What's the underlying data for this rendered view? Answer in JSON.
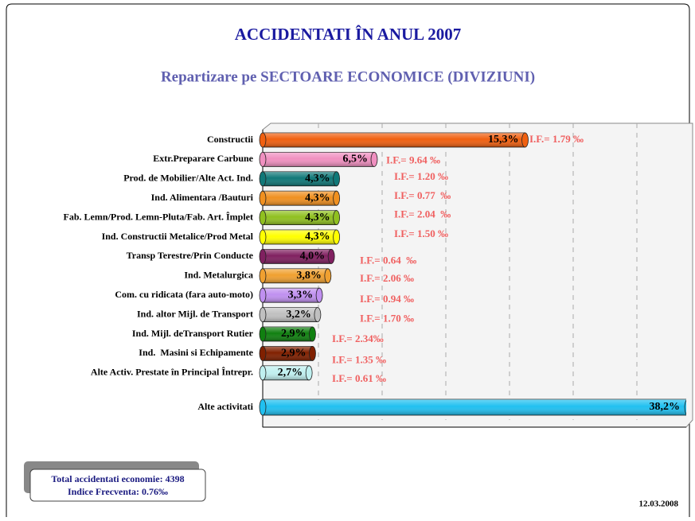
{
  "chart_data": {
    "type": "bar",
    "orientation": "horizontal",
    "title": "ACCIDENTATI ÎN ANUL 2007",
    "subtitle": "Repartizare pe SECTOARE ECONOMICE (DIVIZIUNI)",
    "categories": [
      "Constructii",
      "Extr.Preparare Carbune",
      "Prod. de Mobilier/Alte Act. Ind.",
      "Ind. Alimentara /Bauturi",
      "Fab. Lemn/Prod. Lemn-Pluta/Fab. Art. Împlet",
      "Ind. Constructii Metalice/Prod Metal",
      "Transp Terestre/Prin Conducte",
      "Ind. Metalurgica",
      "Com. cu ridicata (fara auto-moto)",
      "Ind. altor Mijl. de Transport",
      "Ind. Mijl. deTransport Rutier",
      "Ind.  Masini si Echipamente",
      "Alte Activ. Prestate în Principal Întrepr.",
      "Alte activitati"
    ],
    "values": [
      15.3,
      6.5,
      4.3,
      4.3,
      4.3,
      4.3,
      4.0,
      3.8,
      3.3,
      3.2,
      2.9,
      2.9,
      2.7,
      38.2
    ],
    "value_labels": [
      "15,3%",
      "6,5%",
      "4,3%",
      "4,3%",
      "4,3%",
      "4,3%",
      "4,0%",
      "3,8%",
      "3,3%",
      "3,2%",
      "2,9%",
      "2,9%",
      "2,7%",
      "38,2%"
    ],
    "colors": [
      "#f06010",
      "#f090c0",
      "#107878",
      "#f09020",
      "#90c020",
      "#ffff00",
      "#802060",
      "#f0a030",
      "#c090f0",
      "#c0c0c0",
      "#108010",
      "#802000",
      "#c0f0f0",
      "#20c0f0"
    ],
    "annotations": [
      "I.F.= 1.79 ‰",
      "I.F.= 9.64 ‰",
      "I.F.= 1.20 ‰",
      "I.F.= 0.77  ‰",
      "I.F.= 2.04  ‰",
      "I.F.= 1.50 ‰",
      "I.F.= 0.64  ‰",
      "I.F.= 2.06 ‰",
      "I.F.= 0.94 ‰",
      "I.F.= 1.70 ‰",
      "I.F.= 2.34‰",
      "I.F.= 1.35 ‰",
      "I.F.= 0.61 ‰"
    ],
    "xlim": [
      0,
      24.7
    ],
    "summary": [
      "Total accidentati economie: 4398",
      "Indice Frecventa: 0.76‰"
    ],
    "date": "12.03.2008"
  }
}
